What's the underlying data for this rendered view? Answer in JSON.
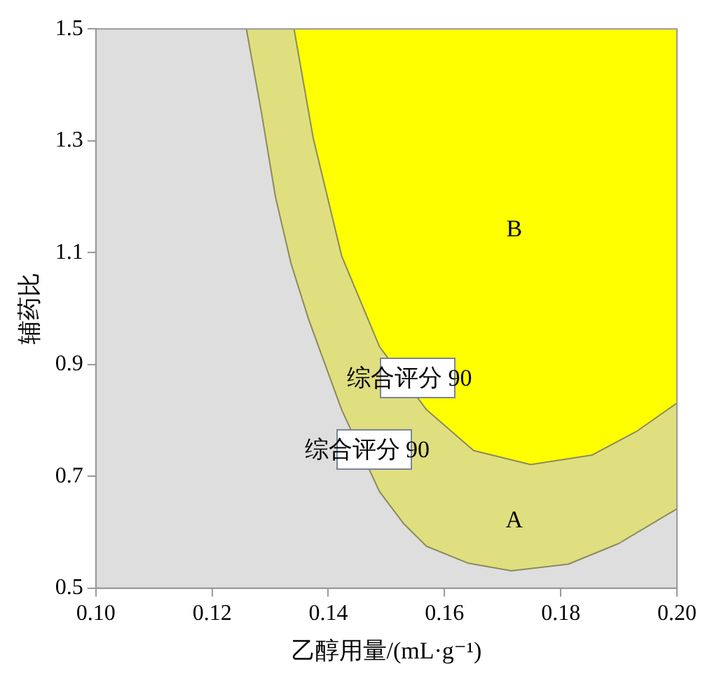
{
  "chart_data": {
    "type": "area",
    "xlabel": "乙醇用量/(mL·g⁻¹)",
    "ylabel": "辅药比",
    "xlim": [
      0.1,
      0.2
    ],
    "xticks": [
      {
        "value": 0.1,
        "label": "0.10"
      },
      {
        "value": 0.12,
        "label": "0.12"
      },
      {
        "value": 0.14,
        "label": "0.14"
      },
      {
        "value": 0.16,
        "label": "0.16"
      },
      {
        "value": 0.18,
        "label": "0.18"
      },
      {
        "value": 0.2,
        "label": "0.20"
      }
    ],
    "ylim": [
      0.5,
      1.5
    ],
    "yticks": [
      0.5,
      0.7,
      0.9,
      1.1,
      1.3,
      1.5
    ],
    "grid": false,
    "legend": false,
    "series": [
      {
        "name": "综合评分 90",
        "color": "#dfdf80",
        "x": [
          0.1259,
          0.1285,
          0.1309,
          0.1336,
          0.1366,
          0.1423,
          0.1488,
          0.153,
          0.1569,
          0.164,
          0.1715,
          0.1813,
          0.19,
          0.2,
          0.2
        ],
        "values": [
          1.5,
          1.35,
          1.2,
          1.08,
          0.981,
          0.819,
          0.673,
          0.615,
          0.575,
          0.545,
          0.531,
          0.543,
          0.58,
          0.642,
          1.5
        ]
      },
      {
        "name": "综合评分 90",
        "color": "#ffff00",
        "x": [
          0.1341,
          0.1374,
          0.1423,
          0.1488,
          0.1569,
          0.165,
          0.1748,
          0.1854,
          0.193,
          0.2,
          0.2
        ],
        "values": [
          1.5,
          1.305,
          1.094,
          0.932,
          0.819,
          0.746,
          0.721,
          0.738,
          0.78,
          0.831,
          1.5
        ]
      }
    ],
    "annotations": [
      "A",
      "B"
    ]
  }
}
